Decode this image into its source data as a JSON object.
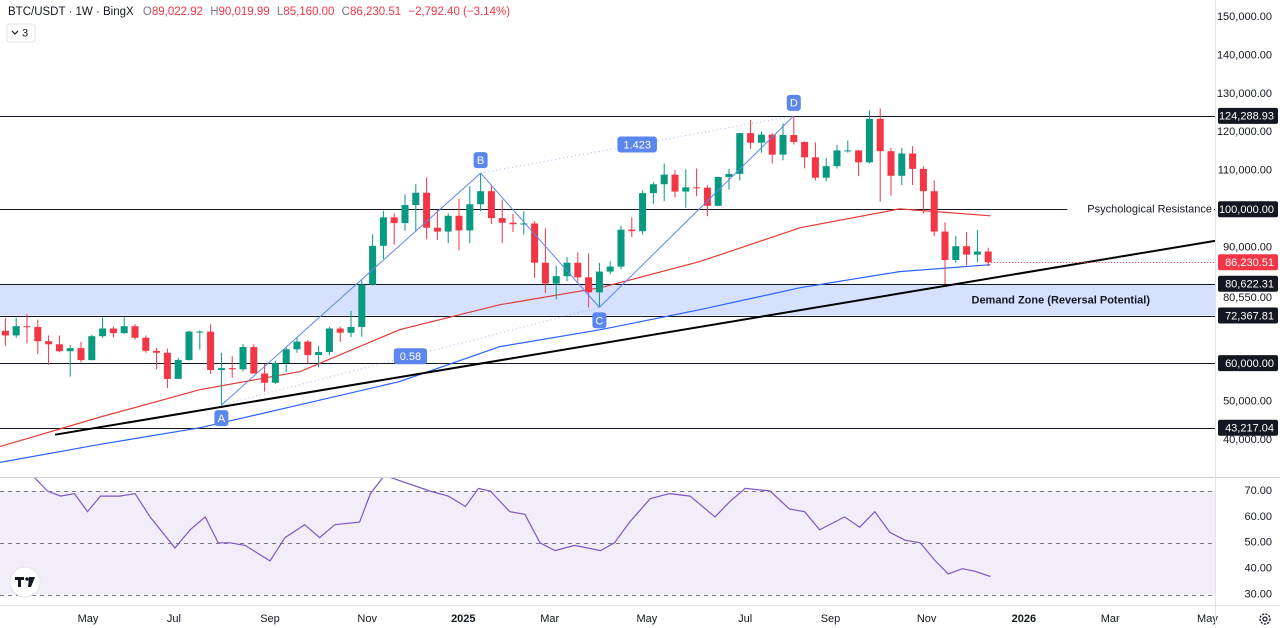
{
  "header": {
    "symbol": "BTC/USDT · 1W · BingX",
    "ohlc": [
      {
        "key": "O",
        "value": "89,022.92"
      },
      {
        "key": "H",
        "value": "90,019.99"
      },
      {
        "key": "L",
        "value": "85,160.00"
      },
      {
        "key": "C",
        "value": "86,230.51"
      }
    ],
    "change": "−2,792.40 (−3.14%)",
    "indicators": "3"
  },
  "chart_data": {
    "type": "candlestick",
    "up_color": "#089981",
    "down_color": "#f23645",
    "xlim": [
      -0.5,
      112
    ],
    "ylim": [
      30400,
      154400
    ],
    "xticks": [
      {
        "value": 7.65,
        "label": "May"
      },
      {
        "value": 15.6,
        "label": "Jul"
      },
      {
        "value": 24.5,
        "label": "Sep"
      },
      {
        "value": 33.5,
        "label": "Nov"
      },
      {
        "value": 42.4,
        "label": "2025"
      },
      {
        "value": 50.4,
        "label": "Mar"
      },
      {
        "value": 59.4,
        "label": "May"
      },
      {
        "value": 68.5,
        "label": "Jul"
      },
      {
        "value": 76.4,
        "label": "Sep"
      },
      {
        "value": 85.3,
        "label": "Nov"
      },
      {
        "value": 94.3,
        "label": "2026"
      },
      {
        "value": 102.3,
        "label": "Mar"
      },
      {
        "value": 111.3,
        "label": "May"
      }
    ],
    "yticks": [
      {
        "value": 40000,
        "label": "40,000.00"
      },
      {
        "value": 50000,
        "label": "50,000.00"
      },
      {
        "value": 90000,
        "label": "90,000.00"
      },
      {
        "value": 110000,
        "label": "110,000.00"
      },
      {
        "value": 120000,
        "label": "120,000.00"
      },
      {
        "value": 130000,
        "label": "130,000.00"
      },
      {
        "value": 140000,
        "label": "140,000.00"
      },
      {
        "value": 150000,
        "label": "150,000.00"
      }
    ],
    "open": [
      68400,
      67200,
      69600,
      69400,
      65700,
      64900,
      63100,
      63900,
      60800,
      67000,
      69000,
      67800,
      69600,
      66600,
      63200,
      62700,
      55900,
      60800,
      68200,
      68200,
      58200,
      58700,
      58400,
      64200,
      57300,
      54900,
      60000,
      63600,
      65600,
      62100,
      62900,
      69000,
      67900,
      69400,
      80400,
      90500,
      97900,
      96400,
      101100,
      104300,
      95200,
      94200,
      98300,
      94500,
      101300,
      104700,
      97700,
      96500,
      96100,
      96300,
      86100,
      80700,
      82600,
      86100,
      82300,
      78400,
      83800,
      85100,
      94700,
      94300,
      104200,
      106500,
      109000,
      104600,
      105700,
      105600,
      100900,
      108400,
      109200,
      119800,
      117300,
      119400,
      114200,
      119300,
      117500,
      113500,
      108200,
      111200,
      115300,
      115300,
      112200,
      123500,
      115100,
      108700,
      114500,
      110500,
      104700,
      94200,
      86800,
      90400,
      88200,
      89022.92
    ],
    "high": [
      71700,
      71800,
      72700,
      71300,
      67200,
      67200,
      64700,
      65500,
      67400,
      71900,
      69500,
      71900,
      70100,
      67200,
      64000,
      63800,
      61400,
      68500,
      68500,
      70100,
      62700,
      61800,
      65000,
      64900,
      59800,
      60600,
      64100,
      66500,
      66000,
      64500,
      69400,
      69500,
      73600,
      81500,
      93500,
      99600,
      98900,
      103900,
      106500,
      108300,
      99900,
      98900,
      102700,
      106000,
      109400,
      106400,
      102500,
      98800,
      99500,
      96900,
      95000,
      85300,
      87500,
      88800,
      88500,
      86100,
      86500,
      95700,
      97900,
      104900,
      107100,
      111900,
      110200,
      110400,
      110600,
      106200,
      108500,
      110500,
      119800,
      123200,
      120200,
      119800,
      122300,
      124288.93,
      117600,
      117400,
      113300,
      116700,
      117900,
      115400,
      125700,
      126200,
      116000,
      116000,
      116400,
      111200,
      107500,
      96600,
      93100,
      94100,
      94600,
      90019.99
    ],
    "low": [
      64500,
      66600,
      65100,
      62400,
      59600,
      62800,
      56500,
      60200,
      60700,
      66600,
      66700,
      67600,
      66100,
      62700,
      58400,
      53500,
      56500,
      60700,
      63500,
      57200,
      49100,
      56200,
      57900,
      57300,
      52600,
      54600,
      57600,
      62700,
      59900,
      58900,
      62000,
      65500,
      66800,
      66900,
      80200,
      87100,
      90800,
      94400,
      94200,
      92200,
      92000,
      91200,
      89300,
      91200,
      99500,
      96200,
      91200,
      94100,
      93400,
      82200,
      78200,
      76600,
      81300,
      81200,
      74500,
      74500,
      83100,
      84400,
      92800,
      93400,
      101400,
      102100,
      103100,
      100400,
      103400,
      98200,
      100900,
      105100,
      107500,
      115700,
      114700,
      111900,
      112700,
      116800,
      110600,
      107500,
      107300,
      110600,
      114700,
      108600,
      111900,
      102000,
      103500,
      106300,
      106300,
      98900,
      93000,
      80550,
      86100,
      85400,
      86200,
      85160
    ],
    "close": [
      67200,
      69600,
      69400,
      65700,
      64900,
      63100,
      63900,
      60800,
      67000,
      69000,
      67800,
      69600,
      66600,
      63200,
      62700,
      55900,
      60800,
      68200,
      68200,
      58200,
      58700,
      58400,
      64200,
      57300,
      54900,
      60000,
      63600,
      65600,
      62100,
      62900,
      69000,
      67900,
      69400,
      80400,
      90500,
      97900,
      96400,
      101100,
      104300,
      95200,
      94200,
      98300,
      94500,
      101300,
      104700,
      97700,
      96500,
      96100,
      96300,
      86100,
      80700,
      82600,
      86100,
      82300,
      78400,
      83800,
      85100,
      94700,
      94300,
      104200,
      106500,
      109000,
      104600,
      105700,
      105600,
      100900,
      108400,
      109200,
      119800,
      117300,
      119400,
      114200,
      119300,
      117500,
      113500,
      108200,
      111200,
      115300,
      115300,
      112200,
      123500,
      115100,
      108700,
      114500,
      110500,
      104700,
      94200,
      86800,
      90400,
      88200,
      89022.92,
      86230.51
    ],
    "moving_averages": [
      {
        "color": "#e53935",
        "x": [
          -0.5,
          8.8,
          18,
          27.3,
          36.5,
          45.8,
          55.1,
          64.3,
          73.6,
          82.8,
          91.2
        ],
        "values": [
          38300,
          46000,
          53100,
          57800,
          68700,
          75200,
          79600,
          86400,
          95200,
          100100,
          98300
        ]
      },
      {
        "color": "#2962ff",
        "x": [
          -0.5,
          8.8,
          18,
          27.3,
          36.5,
          45.8,
          55.1,
          64.3,
          73.6,
          82.8,
          91.2
        ],
        "values": [
          34200,
          38900,
          43200,
          49200,
          55200,
          64300,
          68700,
          73900,
          79600,
          83800,
          85600
        ]
      }
    ],
    "trendline": {
      "color": "#000000",
      "x": [
        4.6,
        112
      ],
      "values": [
        41400,
        91800
      ]
    },
    "levels": [
      {
        "value": 124288.93,
        "label": "124,288.93"
      },
      {
        "value": 100000,
        "label": "100,000.00",
        "note": "Psychological Resistance"
      },
      {
        "value": 80622.31,
        "label": "80,622.31"
      },
      {
        "value": 72367.81,
        "label": "72,367.81"
      },
      {
        "value": 60000,
        "label": "60,000.00"
      },
      {
        "value": 43217.04,
        "label": "43,217.04"
      }
    ],
    "price_marks": [
      {
        "value": 80550,
        "label": "80,550.00"
      }
    ],
    "last_price": {
      "value": 86230.51,
      "label": "86,230.51"
    },
    "zone": {
      "from": 72367.81,
      "to": 80622.31,
      "label": "Demand Zone (Reversal Potential)"
    },
    "pattern": {
      "color": "#5b86ee",
      "points": [
        {
          "label": "A",
          "x": 20,
          "price": 49100
        },
        {
          "label": "B",
          "x": 44,
          "price": 109400
        },
        {
          "label": "C",
          "x": 55,
          "price": 74500
        },
        {
          "label": "D",
          "x": 73,
          "price": 124288.93
        }
      ],
      "ratios": [
        "0.58",
        "1.423"
      ]
    },
    "rsi": {
      "color": "#7e57c2",
      "ylim": [
        26,
        75
      ],
      "band": [
        30,
        70
      ],
      "levels": [
        30,
        50,
        70
      ],
      "yticks": [
        {
          "value": 30,
          "label": "30.00"
        },
        {
          "value": 40,
          "label": "40.00"
        },
        {
          "value": 50,
          "label": "50.00"
        },
        {
          "value": 60,
          "label": "60.00"
        },
        {
          "value": 70,
          "label": "70.00"
        }
      ],
      "x": [
        2.5,
        3.9,
        5.1,
        6.4,
        7.6,
        8.8,
        10.6,
        12,
        13.4,
        15.7,
        17.1,
        18.5,
        19.7,
        20.8,
        22.2,
        24.5,
        25.9,
        27.7,
        29.1,
        30.5,
        32.8,
        33.8,
        35.1,
        39.3,
        41,
        42.6,
        43.8,
        44.9,
        46.7,
        48.1,
        49.5,
        50.9,
        52.7,
        55.1,
        56.4,
        57.8,
        59.7,
        61.5,
        63.4,
        65.7,
        67.1,
        68.5,
        70.8,
        72.6,
        74,
        75.4,
        77.7,
        79.1,
        80.5,
        81.9,
        83.3,
        84.7,
        86.1,
        87.3,
        88.6,
        89.8,
        91.2
      ],
      "values": [
        76,
        70,
        68,
        69,
        62,
        68,
        68,
        69,
        60,
        48,
        55,
        60,
        50,
        50,
        49,
        43,
        52,
        57,
        52,
        57,
        58,
        69,
        76,
        70,
        68,
        64,
        71,
        70,
        62,
        61,
        50,
        47,
        49,
        47,
        50,
        58,
        67,
        69,
        68,
        60,
        66,
        71,
        70,
        63,
        62,
        55,
        60,
        56,
        62,
        54,
        51,
        50,
        43,
        38,
        40,
        39,
        37
      ]
    }
  }
}
